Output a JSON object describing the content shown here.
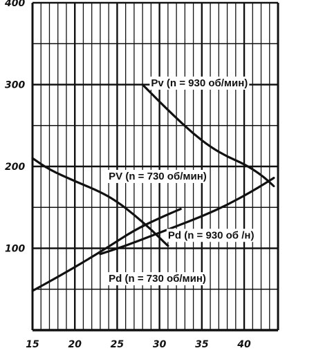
{
  "chart_data": {
    "type": "line",
    "title": "",
    "xlabel": "",
    "ylabel": "",
    "xlim": [
      15,
      44
    ],
    "ylim": [
      0,
      400
    ],
    "x_ticks": [
      15,
      20,
      25,
      30,
      35,
      40
    ],
    "x_tick_labels": [
      "15",
      "20",
      "25",
      "30",
      "35",
      "40"
    ],
    "y_ticks": [
      100,
      200,
      300,
      400
    ],
    "y_tick_labels": [
      "100",
      "200",
      "300",
      "400"
    ],
    "grid": true,
    "line_color": "#111111",
    "series": [
      {
        "name": "Pv (n = 930 об/мин)",
        "x": [
          28.0,
          30.0,
          32.0,
          34.0,
          36.0,
          38.0,
          40.0,
          42.0,
          43.5
        ],
        "y": [
          300,
          279,
          259,
          240,
          224,
          212,
          203,
          190,
          176
        ]
      },
      {
        "name": "PV (n = 730 об/мин)",
        "x": [
          15.0,
          17.0,
          20.0,
          23.0,
          25.0,
          27.0,
          29.0,
          31.0
        ],
        "y": [
          210,
          196,
          182,
          169,
          157,
          141,
          123,
          103
        ]
      },
      {
        "name": "Pd (n = 930 об /мин)",
        "x": [
          23.0,
          26.0,
          29.0,
          32.0,
          35.0,
          38.0,
          41.0,
          43.5
        ],
        "y": [
          93,
          103,
          115,
          127,
          139,
          153,
          170,
          186
        ]
      },
      {
        "name": "Pd (n = 730 об/мин)",
        "x": [
          15.0,
          18.0,
          21.0,
          24.0,
          27.0,
          30.0,
          32.5
        ],
        "y": [
          48,
          65,
          83,
          102,
          122,
          137,
          148
        ]
      }
    ],
    "labels": [
      {
        "text": "Pv (n = 930 об/мин)",
        "x": 29.0,
        "y": 298
      },
      {
        "text": "PV (n = 730 об/мин)",
        "x": 24.0,
        "y": 184
      },
      {
        "text": "Pd (n = 930 об /н)",
        "x": 31.0,
        "y": 112
      },
      {
        "text": "Pd (n = 730 об/мин)",
        "x": 24.0,
        "y": 59
      }
    ]
  }
}
